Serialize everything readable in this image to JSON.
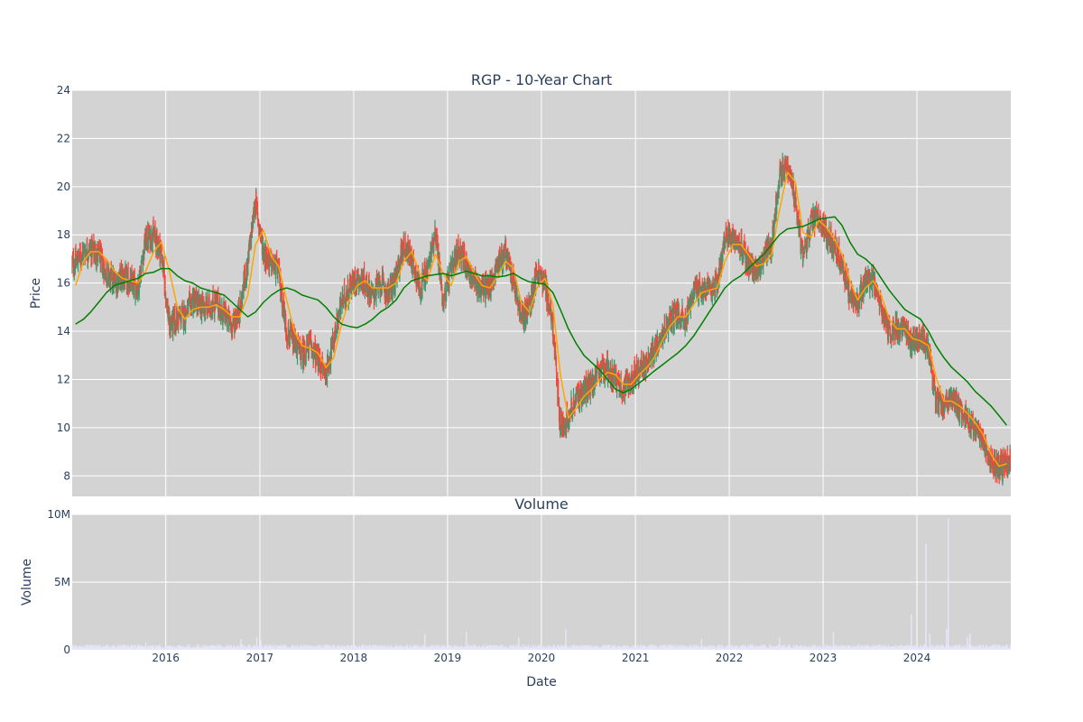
{
  "chart_data": [
    {
      "type": "candlestick",
      "title": "RGP - 10-Year Chart",
      "xlabel": "",
      "ylabel": "Price",
      "ylim": [
        7.15,
        24
      ],
      "yticks": [
        8,
        10,
        12,
        14,
        16,
        18,
        20,
        22,
        24
      ],
      "xlim": [
        "2015-01-02",
        "2024-12-31"
      ],
      "grid": true,
      "background": "#d3d3d3",
      "colors": {
        "increasing": "#3d9970",
        "decreasing": "#ff4136",
        "ma_short": "#ffa500",
        "ma_long": "#008000"
      },
      "series": [
        {
          "kind": "close",
          "x": [
            "2015-01",
            "2015-02",
            "2015-03",
            "2015-04",
            "2015-05",
            "2015-06",
            "2015-07",
            "2015-08",
            "2015-09",
            "2015-10",
            "2015-11",
            "2015-12",
            "2016-01",
            "2016-02",
            "2016-03",
            "2016-04",
            "2016-05",
            "2016-06",
            "2016-07",
            "2016-08",
            "2016-09",
            "2016-10",
            "2016-11",
            "2016-12",
            "2017-01",
            "2017-02",
            "2017-03",
            "2017-04",
            "2017-05",
            "2017-06",
            "2017-07",
            "2017-08",
            "2017-09",
            "2017-10",
            "2017-11",
            "2017-12",
            "2018-01",
            "2018-02",
            "2018-03",
            "2018-04",
            "2018-05",
            "2018-06",
            "2018-07",
            "2018-08",
            "2018-09",
            "2018-10",
            "2018-11",
            "2018-12",
            "2019-01",
            "2019-02",
            "2019-03",
            "2019-04",
            "2019-05",
            "2019-06",
            "2019-07",
            "2019-08",
            "2019-09",
            "2019-10",
            "2019-11",
            "2019-12",
            "2020-01",
            "2020-02",
            "2020-03",
            "2020-04",
            "2020-05",
            "2020-06",
            "2020-07",
            "2020-08",
            "2020-09",
            "2020-10",
            "2020-11",
            "2020-12",
            "2021-01",
            "2021-02",
            "2021-03",
            "2021-04",
            "2021-05",
            "2021-06",
            "2021-07",
            "2021-08",
            "2021-09",
            "2021-10",
            "2021-11",
            "2021-12",
            "2022-01",
            "2022-02",
            "2022-03",
            "2022-04",
            "2022-05",
            "2022-06",
            "2022-07",
            "2022-08",
            "2022-09",
            "2022-10",
            "2022-11",
            "2022-12",
            "2023-01",
            "2023-02",
            "2023-03",
            "2023-04",
            "2023-05",
            "2023-06",
            "2023-07",
            "2023-08",
            "2023-09",
            "2023-10",
            "2023-11",
            "2023-12",
            "2024-01",
            "2024-02",
            "2024-03",
            "2024-04",
            "2024-05",
            "2024-06",
            "2024-07",
            "2024-08",
            "2024-09",
            "2024-10",
            "2024-11",
            "2024-12"
          ],
          "values": [
            16.8,
            17.3,
            17.4,
            17.2,
            16.4,
            16.0,
            16.3,
            16.0,
            15.8,
            17.8,
            18.0,
            17.3,
            14.2,
            14.5,
            14.7,
            15.3,
            15.0,
            15.0,
            15.2,
            14.7,
            14.2,
            14.9,
            16.8,
            19.4,
            17.3,
            16.8,
            16.5,
            14.0,
            13.5,
            13.0,
            13.5,
            12.8,
            12.2,
            13.6,
            15.2,
            15.8,
            16.2,
            16.0,
            15.5,
            16.0,
            15.6,
            16.2,
            17.6,
            17.0,
            15.8,
            16.5,
            18.2,
            15.2,
            16.5,
            17.4,
            16.8,
            16.0,
            15.8,
            15.8,
            16.8,
            17.3,
            16.0,
            14.5,
            15.0,
            16.5,
            16.0,
            14.2,
            10.0,
            10.5,
            11.2,
            11.5,
            11.8,
            12.3,
            12.5,
            12.0,
            11.6,
            12.0,
            12.4,
            12.6,
            13.2,
            14.0,
            14.4,
            14.8,
            14.5,
            15.6,
            15.8,
            15.6,
            16.0,
            17.8,
            17.9,
            17.5,
            16.8,
            16.5,
            17.0,
            17.5,
            20.5,
            21.0,
            19.5,
            17.0,
            18.5,
            18.7,
            18.0,
            17.6,
            16.8,
            15.5,
            15.2,
            16.2,
            16.0,
            15.0,
            14.0,
            14.2,
            14.0,
            13.5,
            13.8,
            13.2,
            11.2,
            11.0,
            11.3,
            10.8,
            10.4,
            10.0,
            9.5,
            8.6,
            8.4,
            8.5
          ]
        },
        {
          "kind": "ma_short",
          "values": [
            15.9,
            16.9,
            17.3,
            17.3,
            17.0,
            16.5,
            16.2,
            16.1,
            16.0,
            16.5,
            17.3,
            17.7,
            16.5,
            15.0,
            14.5,
            14.9,
            15.0,
            15.0,
            15.1,
            14.9,
            14.6,
            14.6,
            15.5,
            17.6,
            18.2,
            17.1,
            16.7,
            15.3,
            14.0,
            13.4,
            13.3,
            13.1,
            12.5,
            12.9,
            14.3,
            15.3,
            15.9,
            16.1,
            15.8,
            15.8,
            15.8,
            16.0,
            16.9,
            17.3,
            16.4,
            16.1,
            17.2,
            16.4,
            15.9,
            16.9,
            17.1,
            16.4,
            15.9,
            15.8,
            16.3,
            16.9,
            16.6,
            15.2,
            14.8,
            15.8,
            16.2,
            15.1,
            12.2,
            10.4,
            10.8,
            11.3,
            11.6,
            12.0,
            12.3,
            12.2,
            11.8,
            11.8,
            12.2,
            12.5,
            12.9,
            13.6,
            14.2,
            14.6,
            14.6,
            15.1,
            15.6,
            15.7,
            15.8,
            16.9,
            17.6,
            17.6,
            17.2,
            16.7,
            16.8,
            17.2,
            19.0,
            20.6,
            20.2,
            18.1,
            17.9,
            18.6,
            18.3,
            17.8,
            17.2,
            16.1,
            15.3,
            15.8,
            16.1,
            15.5,
            14.5,
            14.1,
            14.1,
            13.7,
            13.6,
            13.4,
            12.1,
            11.1,
            11.1,
            10.9,
            10.6,
            10.2,
            9.7,
            8.9,
            8.4,
            8.5
          ]
        },
        {
          "kind": "ma_long",
          "values": [
            14.3,
            14.5,
            14.8,
            15.2,
            15.6,
            15.9,
            16.0,
            16.1,
            16.2,
            16.4,
            16.45,
            16.6,
            16.6,
            16.3,
            16.1,
            16.0,
            15.8,
            15.7,
            15.6,
            15.5,
            15.2,
            14.9,
            14.6,
            14.8,
            15.2,
            15.5,
            15.7,
            15.8,
            15.7,
            15.5,
            15.4,
            15.3,
            15.0,
            14.6,
            14.3,
            14.2,
            14.15,
            14.3,
            14.5,
            14.8,
            15.0,
            15.3,
            15.8,
            16.1,
            16.2,
            16.3,
            16.35,
            16.4,
            16.3,
            16.4,
            16.5,
            16.4,
            16.3,
            16.3,
            16.25,
            16.3,
            16.4,
            16.2,
            16.05,
            16.0,
            15.95,
            15.6,
            14.9,
            14.1,
            13.5,
            13.0,
            12.7,
            12.4,
            12.0,
            11.6,
            11.45,
            11.6,
            11.85,
            12.1,
            12.35,
            12.6,
            12.85,
            13.1,
            13.4,
            13.8,
            14.3,
            14.8,
            15.3,
            15.8,
            16.1,
            16.3,
            16.6,
            16.9,
            17.2,
            17.6,
            18.0,
            18.25,
            18.3,
            18.35,
            18.5,
            18.65,
            18.7,
            18.75,
            18.4,
            17.7,
            17.2,
            17.0,
            16.7,
            16.2,
            15.7,
            15.3,
            14.9,
            14.7,
            14.5,
            14.0,
            13.4,
            12.9,
            12.5,
            12.2,
            11.9,
            11.5,
            11.2,
            10.9,
            10.5,
            10.1
          ]
        }
      ]
    },
    {
      "type": "bar",
      "title": "Volume",
      "xlabel": "Date",
      "ylabel": "Volume",
      "ylim": [
        0,
        10000000
      ],
      "yticks": [
        0,
        5000000,
        10000000
      ],
      "ytick_labels": [
        "0",
        "5M",
        "10M"
      ],
      "xtick_labels": [
        "2016",
        "2017",
        "2018",
        "2019",
        "2020",
        "2021",
        "2022",
        "2023",
        "2024"
      ],
      "xticks": [
        "2016-01-01",
        "2017-01-01",
        "2018-01-01",
        "2019-01-01",
        "2020-01-01",
        "2021-01-01",
        "2022-01-01",
        "2023-01-01",
        "2024-01-01"
      ],
      "grid": true,
      "background": "#d3d3d3",
      "bar_color": "#e6e6fa",
      "baseline_volume": 250000,
      "spikes": [
        {
          "x": "2015-10-15",
          "value": 550000
        },
        {
          "x": "2016-10-20",
          "value": 800000
        },
        {
          "x": "2016-12-20",
          "value": 950000
        },
        {
          "x": "2017-01-05",
          "value": 700000
        },
        {
          "x": "2018-10-05",
          "value": 1150000
        },
        {
          "x": "2019-03-15",
          "value": 1300000
        },
        {
          "x": "2019-10-05",
          "value": 900000
        },
        {
          "x": "2020-04-05",
          "value": 1550000
        },
        {
          "x": "2021-09-15",
          "value": 800000
        },
        {
          "x": "2022-07-15",
          "value": 900000
        },
        {
          "x": "2023-02-10",
          "value": 1300000
        },
        {
          "x": "2023-12-10",
          "value": 2600000
        },
        {
          "x": "2024-02-05",
          "value": 7800000
        },
        {
          "x": "2024-02-20",
          "value": 1200000
        },
        {
          "x": "2024-04-25",
          "value": 1550000
        },
        {
          "x": "2024-05-02",
          "value": 9700000
        },
        {
          "x": "2024-07-15",
          "value": 950000
        },
        {
          "x": "2024-07-25",
          "value": 1200000
        }
      ]
    }
  ]
}
